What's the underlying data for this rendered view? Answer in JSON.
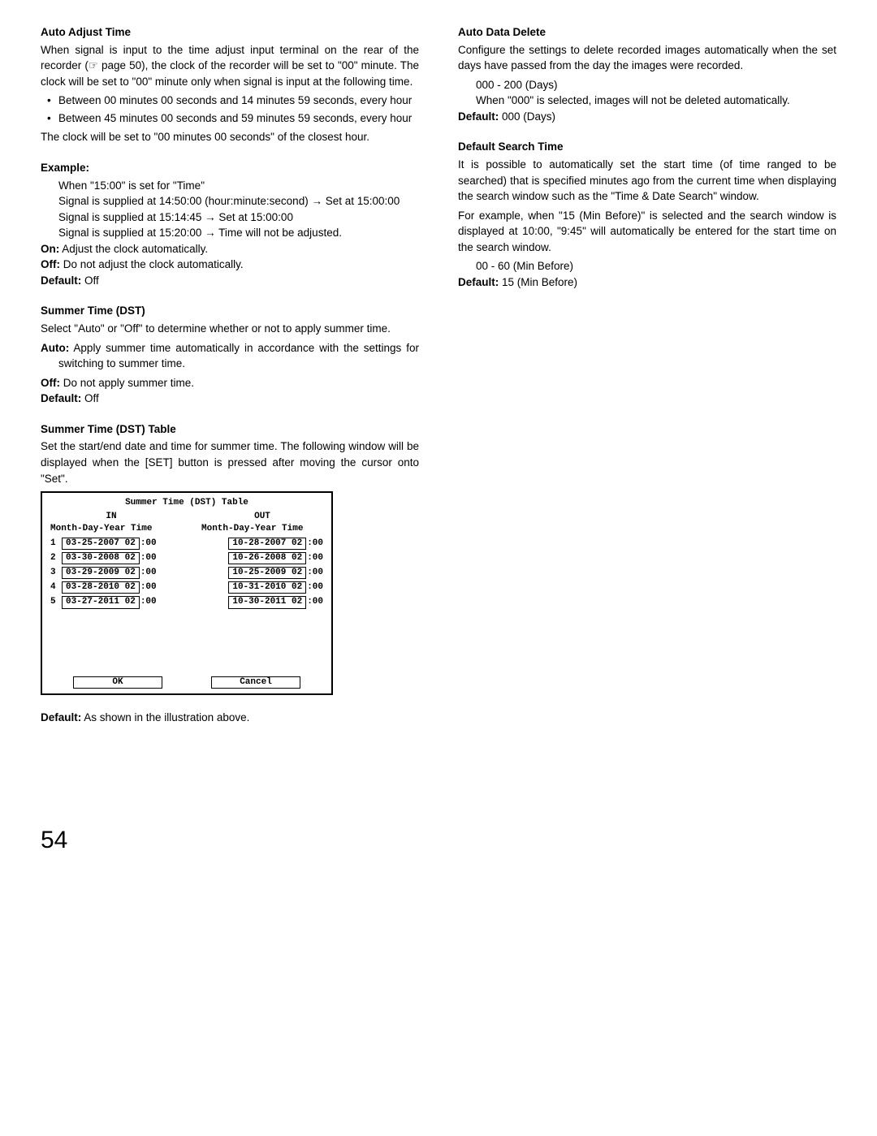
{
  "left": {
    "autoAdjust": {
      "heading": "Auto Adjust Time",
      "p1": "When signal is input to the time adjust input terminal on the rear of the recorder (☞ page 50), the clock of the recorder will be set to \"00\" minute. The clock will be set to \"00\" minute only when signal is input at the following time.",
      "b1": "Between 00 minutes 00 seconds and 14 minutes 59 seconds, every hour",
      "b2": "Between 45 minutes 00 seconds and 59 minutes 59 seconds, every hour",
      "p2": "The clock will be set to \"00 minutes 00 seconds\" of the closest hour."
    },
    "example": {
      "heading": "Example:",
      "l1": "When \"15:00\" is set for \"Time\"",
      "l2": "Signal is supplied at 14:50:00 (hour:minute:second) → Set at 15:00:00",
      "l3": "Signal is supplied at 15:14:45 → Set at 15:00:00",
      "l4": "Signal is supplied at 15:20:00 → Time will not be adjusted.",
      "onLabel": "On:",
      "onText": " Adjust the clock automatically.",
      "offLabel": "Off:",
      "offText": " Do not adjust the clock automatically.",
      "defLabel": "Default:",
      "defText": " Off"
    },
    "summer": {
      "heading": "Summer Time (DST)",
      "p1": "Select \"Auto\" or \"Off\" to determine whether or not to apply summer time.",
      "autoLabel": "Auto:",
      "autoText": " Apply summer time automatically in accordance with the settings for switching to summer time.",
      "offLabel": "Off:",
      "offText": " Do not apply summer time.",
      "defLabel": "Default:",
      "defText": " Off"
    },
    "summerTable": {
      "heading": "Summer Time (DST) Table",
      "p1": "Set the start/end date and time for summer time. The following window will be displayed when the [SET] button is pressed after moving the cursor onto \"Set\".",
      "defLabel": "Default:",
      "defText": " As shown in the illustration above."
    },
    "dst": {
      "title": "Summer Time (DST) Table",
      "inLabel": "IN",
      "outLabel": "OUT",
      "colHdr": "Month-Day-Year Time",
      "rows": [
        {
          "n": "1",
          "in": "03-25-2007 02",
          "out": "10-28-2007 02"
        },
        {
          "n": "2",
          "in": "03-30-2008 02",
          "out": "10-26-2008 02"
        },
        {
          "n": "3",
          "in": "03-29-2009 02",
          "out": "10-25-2009 02"
        },
        {
          "n": "4",
          "in": "03-28-2010 02",
          "out": "10-31-2010 02"
        },
        {
          "n": "5",
          "in": "03-27-2011 02",
          "out": "10-30-2011 02"
        }
      ],
      "tail": ":00",
      "ok": "OK",
      "cancel": "Cancel"
    }
  },
  "right": {
    "autoDelete": {
      "heading": "Auto Data Delete",
      "p1": "Configure the settings to delete recorded images automatically when the set days have passed from the day the images were recorded.",
      "l1": "000 - 200 (Days)",
      "l2": "When \"000\" is selected, images will not be deleted automatically.",
      "defLabel": "Default:",
      "defText": " 000 (Days)"
    },
    "search": {
      "heading": "Default Search Time",
      "p1": "It is possible to automatically set the start time (of time ranged to be searched) that is specified minutes ago from the current time when displaying the search window such as the \"Time & Date Search\" window.",
      "p2": "For example, when \"15 (Min Before)\" is selected and the search window is displayed at 10:00, \"9:45\" will automatically be entered for the start time on the search window.",
      "l1": "00 - 60 (Min Before)",
      "defLabel": "Default:",
      "defText": " 15 (Min Before)"
    }
  },
  "pageNum": "54"
}
